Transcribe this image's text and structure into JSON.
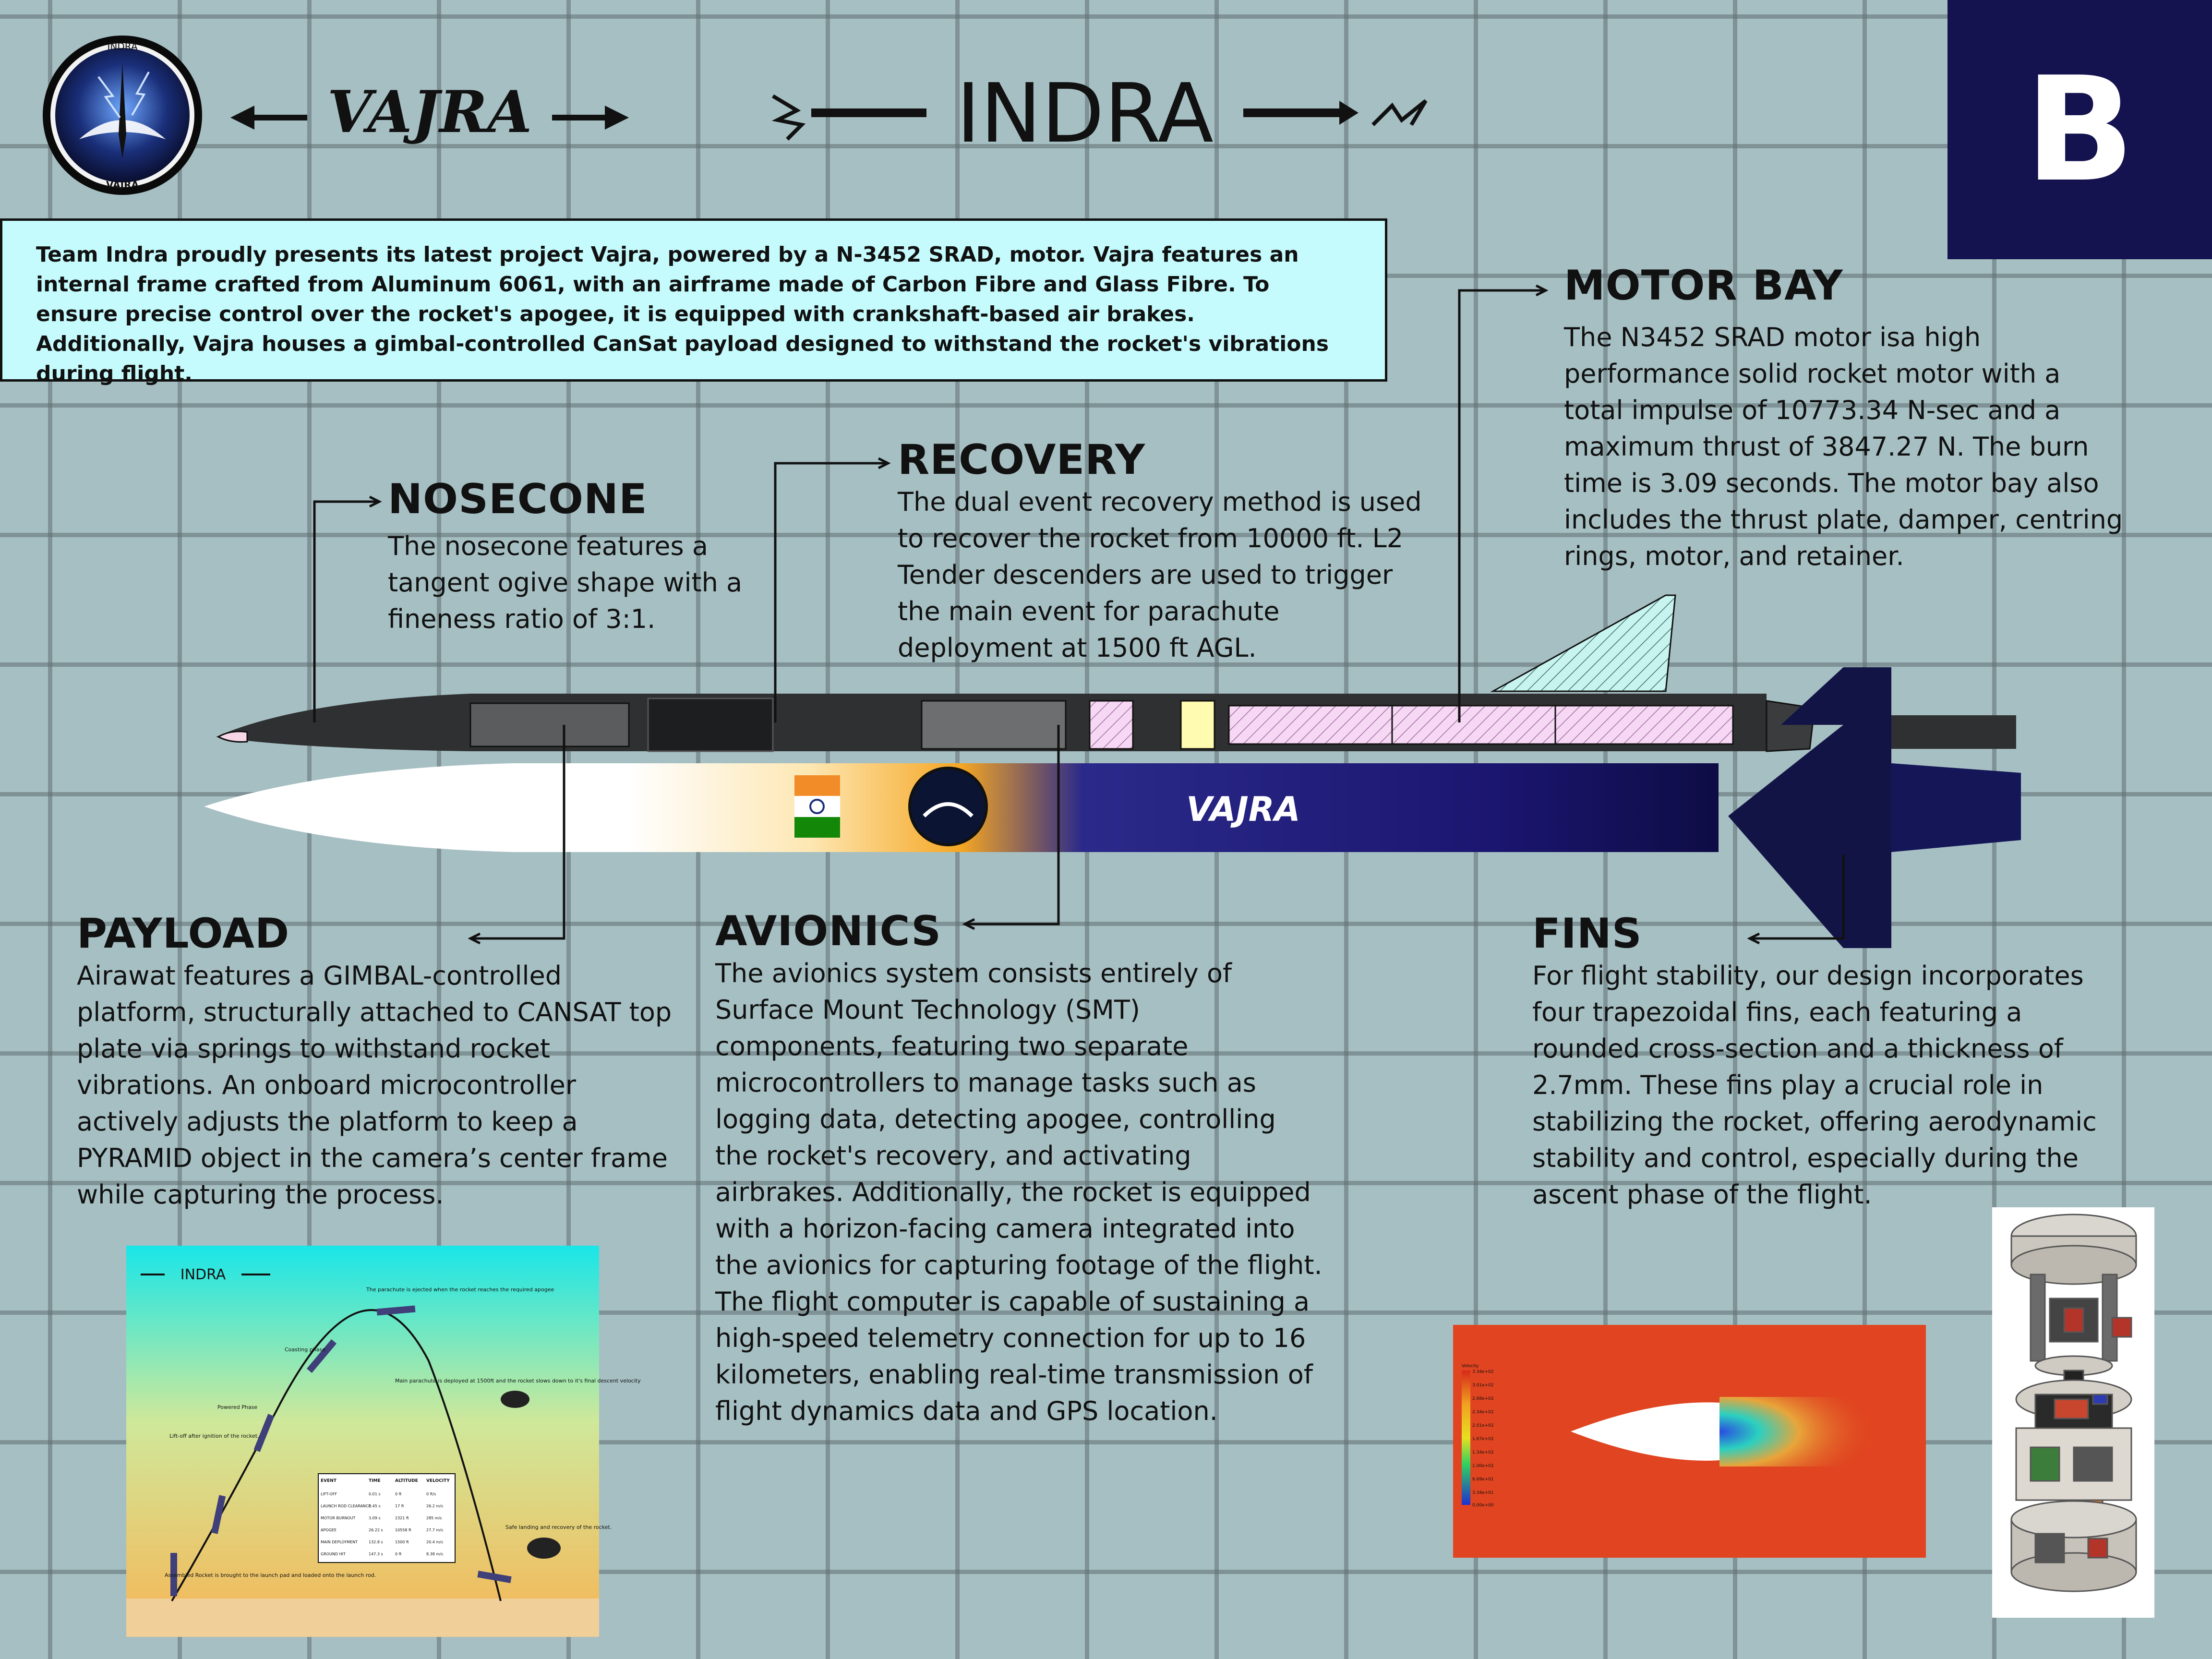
{
  "header": {
    "team_logo_title": "INDRA",
    "team_logo_bottom": "VAJRA",
    "project_wordmark": "VAJRA",
    "team_wordmark": "INDRA",
    "section_letter": "B"
  },
  "intro": {
    "text": "Team Indra proudly presents its latest project Vajra, powered by a N-3452 SRAD, motor. Vajra features an internal frame crafted from Aluminum 6061, with an airframe made of Carbon Fibre and Glass Fibre. To ensure precise control over the rocket's apogee, it is equipped with crankshaft-based air brakes. Additionally, Vajra houses a gimbal-controlled CanSat payload designed to withstand the rocket's vibrations during flight."
  },
  "sections": {
    "nosecone": {
      "title": "NOSECONE",
      "lines": [
        "The nosecone features a",
        "tangent ogive shape with a",
        "fineness ratio of 3:1."
      ]
    },
    "recovery": {
      "title": "RECOVERY",
      "lines": [
        "The dual event recovery method is used",
        "to recover the rocket from 10000 ft. L2",
        "Tender descenders are used to trigger",
        "the main event for parachute",
        "deployment at 1500 ft AGL."
      ]
    },
    "motor_bay": {
      "title": "MOTOR BAY",
      "lines": [
        "The N3452 SRAD motor isa high",
        "performance solid rocket motor with a",
        "total impulse of 10773.34 N-sec and a",
        "maximum thrust of 3847.27 N. The burn",
        "time is 3.09 seconds. The motor bay also",
        "includes the thrust plate, damper, centring",
        "rings, motor, and retainer."
      ]
    },
    "payload": {
      "title": "PAYLOAD",
      "lines": [
        "Airawat features a GIMBAL-controlled",
        "platform, structurally attached to CANSAT top",
        "plate via springs to withstand rocket",
        "vibrations. An onboard microcontroller",
        "actively adjusts the platform to keep a",
        "PYRAMID object in the camera’s center frame",
        "while capturing the process."
      ]
    },
    "avionics": {
      "title": "AVIONICS",
      "lines": [
        "The avionics system consists entirely of",
        "Surface Mount Technology (SMT)",
        "components, featuring two separate",
        "microcontrollers to manage tasks such as",
        "logging data, detecting apogee, controlling",
        "the rocket's recovery, and activating",
        "airbrakes. Additionally, the rocket is equipped",
        "with a horizon-facing camera integrated into",
        "the avionics for capturing footage of the flight.",
        "The flight computer is capable of sustaining a",
        "high-speed telemetry connection for up to 16",
        "kilometers, enabling real-time transmission of",
        "flight dynamics data and GPS location."
      ]
    },
    "fins": {
      "title": "FINS",
      "lines": [
        "For flight stability, our design incorporates",
        "four trapezoidal fins, each featuring a",
        "rounded cross-section and a thickness of",
        "2.7mm. These fins play a crucial role in",
        "stabilizing the rocket, offering aerodynamic",
        "stability and control, especially during the",
        "ascent phase of the flight."
      ]
    }
  },
  "rocket": {
    "livery_wordmark": "VAJRA"
  },
  "trajectory_figure": {
    "logo": "INDRA",
    "stage_labels": [
      "Assembled Rocket is brought to the launch pad and loaded onto the launch rod.",
      "Lift-off after ignition of the rocket.",
      "Powered Phase",
      "Coasting phase",
      "The parachute is ejected when the rocket reaches the required apogee",
      "Main parachute is deployed at 1500ft and the rocket slows down to it's final descent velocity",
      "Safe landing and recovery of the rocket."
    ],
    "table": {
      "headers": [
        "EVENT",
        "TIME",
        "ALTITUDE",
        "VELOCITY"
      ],
      "rows": [
        [
          "LIFT-OFF",
          "0.01 s",
          "0 ft",
          "0 ft/s"
        ],
        [
          "LAUNCH ROD CLEARANCE",
          "0.45 s",
          "17 ft",
          "26.2 m/s"
        ],
        [
          "MOTOR BURNOUT",
          "3.09 s",
          "2321 ft",
          "285 m/s"
        ],
        [
          "APOGEE",
          "26.22 s",
          "10558 ft",
          "27.7 m/s"
        ],
        [
          "MAIN DEPLOYMENT",
          "132.8 s",
          "1500 ft",
          "20.4 m/s"
        ],
        [
          "GROUND HIT",
          "147.3 s",
          "0 ft",
          "8.38 m/s"
        ]
      ]
    }
  },
  "cfd_figure": {
    "legend_title": "Velocity",
    "legend_values": [
      "3.34e+02",
      "3.01e+02",
      "2.68e+02",
      "2.34e+02",
      "2.01e+02",
      "1.67e+02",
      "1.34e+02",
      "1.00e+02",
      "6.69e+01",
      "3.34e+01",
      "0.00e+00"
    ]
  },
  "colors": {
    "background": "#a6bfc3",
    "intro_box": "#c5fbfd",
    "badge": "#14124f",
    "rocket_blue": "#14124f",
    "rocket_orange": "#f5a623"
  }
}
